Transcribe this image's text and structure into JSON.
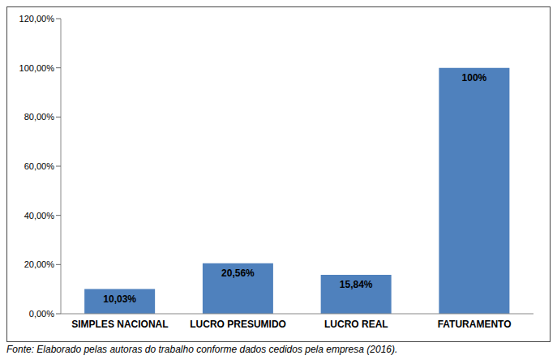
{
  "chart_data": {
    "type": "bar",
    "categories": [
      "SIMPLES NACIONAL",
      "LUCRO PRESUMIDO",
      "LUCRO REAL",
      "FATURAMENTO"
    ],
    "values": [
      10.03,
      20.56,
      15.84,
      100
    ],
    "value_labels": [
      "10,03%",
      "20,56%",
      "15,84%",
      "100%"
    ],
    "data_labels": true,
    "color": "#4f81bd",
    "ylim": [
      0,
      120
    ],
    "yticks": [
      {
        "value": 0,
        "label": "0,00%"
      },
      {
        "value": 20,
        "label": "20,00%"
      },
      {
        "value": 40,
        "label": "40,00%"
      },
      {
        "value": 60,
        "label": "60,00%"
      },
      {
        "value": 80,
        "label": "80,00%"
      },
      {
        "value": 100,
        "label": "100,00%"
      },
      {
        "value": 120,
        "label": "120,00%"
      }
    ],
    "grid": false,
    "annotations": [
      "Fonte: Elaborado pelas autoras do trabalho conforme dados cedidos pela empresa (2016)."
    ]
  }
}
